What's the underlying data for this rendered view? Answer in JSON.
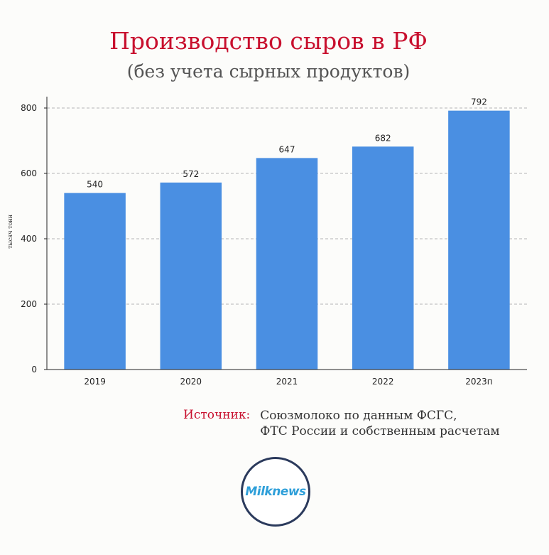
{
  "chart_data": {
    "type": "bar",
    "title": "Производство сыров в РФ",
    "subtitle": "(без учета сырных продуктов)",
    "ylabel": "тысяч тонн",
    "xlabel": "",
    "categories": [
      "2019",
      "2020",
      "2021",
      "2022",
      "2023п"
    ],
    "values": [
      540,
      572,
      647,
      682,
      792
    ],
    "ylim": [
      0,
      800
    ],
    "yticks": [
      0,
      200,
      400,
      600,
      800
    ],
    "grid": true,
    "bar_color": "#4a8fe2"
  },
  "source": {
    "label": "Источник:",
    "lines": [
      "Союзмолоко по данным ФСГС,",
      "ФТС России и собственным расчетам"
    ]
  },
  "logo": {
    "text": "Milknews"
  },
  "colors": {
    "accent": "#c8102e",
    "bar": "#4a8fe2",
    "logo_ring": "#2b3a5c",
    "logo_text": "#2e9fd9"
  }
}
